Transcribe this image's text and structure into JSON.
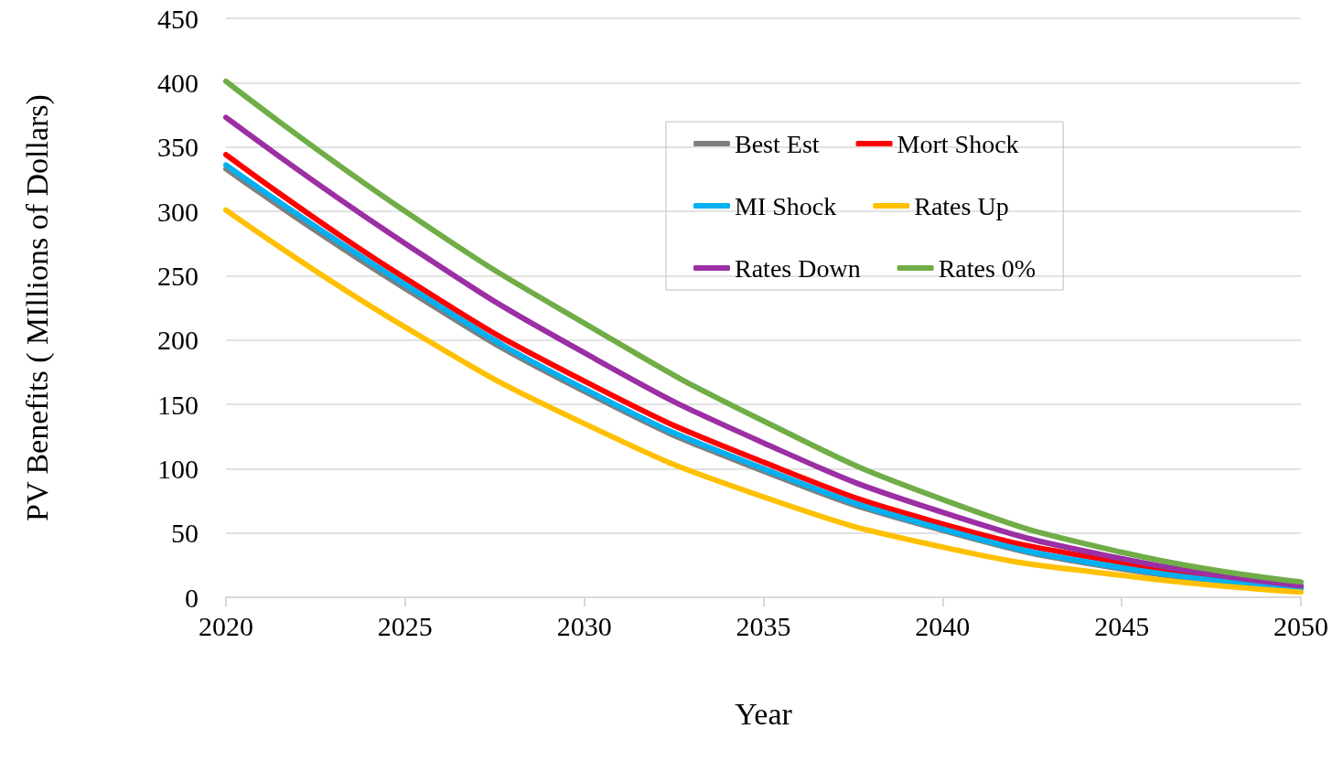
{
  "chart_data": {
    "type": "line",
    "xlabel": "Year",
    "ylabel": "PV Benefits ( MIllions of Dollars)",
    "x": [
      2020,
      2025,
      2030,
      2035,
      2040,
      2045,
      2050
    ],
    "series": [
      {
        "name": "Best Est",
        "color": "#7f7f7f",
        "values": [
          333,
          240,
          160,
          98,
          52,
          22,
          7
        ]
      },
      {
        "name": "Mort Shock",
        "color": "#ff0000",
        "values": [
          344,
          248,
          168,
          105,
          57,
          27,
          8
        ]
      },
      {
        "name": "MI Shock",
        "color": "#00b0f0",
        "values": [
          336,
          243,
          162,
          100,
          53,
          23,
          7
        ]
      },
      {
        "name": "Rates Up",
        "color": "#ffc000",
        "values": [
          301,
          210,
          135,
          78,
          39,
          17,
          4
        ]
      },
      {
        "name": "Rates Down",
        "color": "#9b2fa3",
        "values": [
          373,
          275,
          190,
          120,
          66,
          30,
          9
        ]
      },
      {
        "name": "Rates 0%",
        "color": "#70ad47",
        "values": [
          401,
          300,
          213,
          137,
          76,
          35,
          12
        ]
      }
    ],
    "xlim": [
      2020,
      2050
    ],
    "xticks": [
      2020,
      2025,
      2030,
      2035,
      2040,
      2045,
      2050
    ],
    "ylim": [
      0,
      450
    ],
    "yticks": [
      0,
      50,
      100,
      150,
      200,
      250,
      300,
      350,
      400,
      450
    ],
    "grid": "y",
    "legend": "top right",
    "marker": "none",
    "line_style": "solid"
  }
}
